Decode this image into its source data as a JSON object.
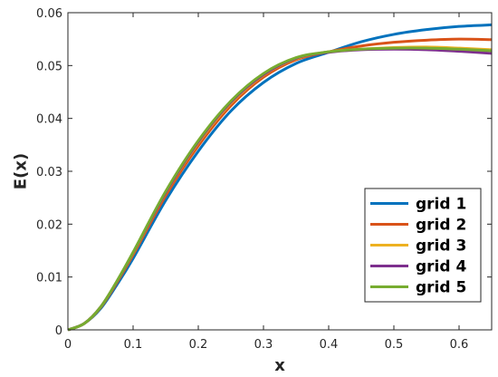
{
  "chart_data": {
    "type": "line",
    "title": "",
    "xlabel": "x",
    "ylabel": "E(x)",
    "xlim": [
      0,
      0.65
    ],
    "ylim": [
      0,
      0.06
    ],
    "xticks": [
      0,
      0.1,
      0.2,
      0.3,
      0.4,
      0.5,
      0.6
    ],
    "xtick_labels": [
      "0",
      "0.1",
      "0.2",
      "0.3",
      "0.4",
      "0.5",
      "0.6"
    ],
    "yticks": [
      0,
      0.01,
      0.02,
      0.03,
      0.04,
      0.05,
      0.06
    ],
    "ytick_labels": [
      "0",
      "0.01",
      "0.02",
      "0.03",
      "0.04",
      "0.05",
      "0.06"
    ],
    "grid": false,
    "legend_position": "bottom-right",
    "x": [
      0,
      0.025,
      0.05,
      0.075,
      0.1,
      0.15,
      0.2,
      0.25,
      0.3,
      0.35,
      0.4,
      0.45,
      0.5,
      0.55,
      0.6,
      0.65
    ],
    "series": [
      {
        "name": "grid 1",
        "color": "#0072BD",
        "values": [
          0,
          0.0012,
          0.004,
          0.0085,
          0.0135,
          0.0245,
          0.0338,
          0.0414,
          0.0468,
          0.0504,
          0.0525,
          0.0545,
          0.0559,
          0.0568,
          0.0574,
          0.0577
        ]
      },
      {
        "name": "grid 2",
        "color": "#D95319",
        "values": [
          0,
          0.0012,
          0.0042,
          0.0089,
          0.0142,
          0.0254,
          0.0348,
          0.0424,
          0.0478,
          0.0511,
          0.0526,
          0.0537,
          0.0544,
          0.0548,
          0.055,
          0.0549
        ]
      },
      {
        "name": "grid 3",
        "color": "#EDB120",
        "values": [
          0,
          0.0012,
          0.0043,
          0.0091,
          0.0145,
          0.0259,
          0.0354,
          0.0429,
          0.0482,
          0.0513,
          0.0526,
          0.0531,
          0.0534,
          0.0535,
          0.0533,
          0.053
        ]
      },
      {
        "name": "grid 4",
        "color": "#7E2F8E",
        "values": [
          0,
          0.0012,
          0.0043,
          0.0091,
          0.0146,
          0.026,
          0.0356,
          0.0431,
          0.0483,
          0.0514,
          0.0525,
          0.053,
          0.0531,
          0.053,
          0.0527,
          0.0523
        ]
      },
      {
        "name": "grid 5",
        "color": "#77AC30",
        "values": [
          0,
          0.0012,
          0.0043,
          0.0092,
          0.0147,
          0.0262,
          0.0358,
          0.0433,
          0.0485,
          0.0515,
          0.0526,
          0.0531,
          0.0533,
          0.0533,
          0.0531,
          0.0528
        ]
      }
    ]
  }
}
